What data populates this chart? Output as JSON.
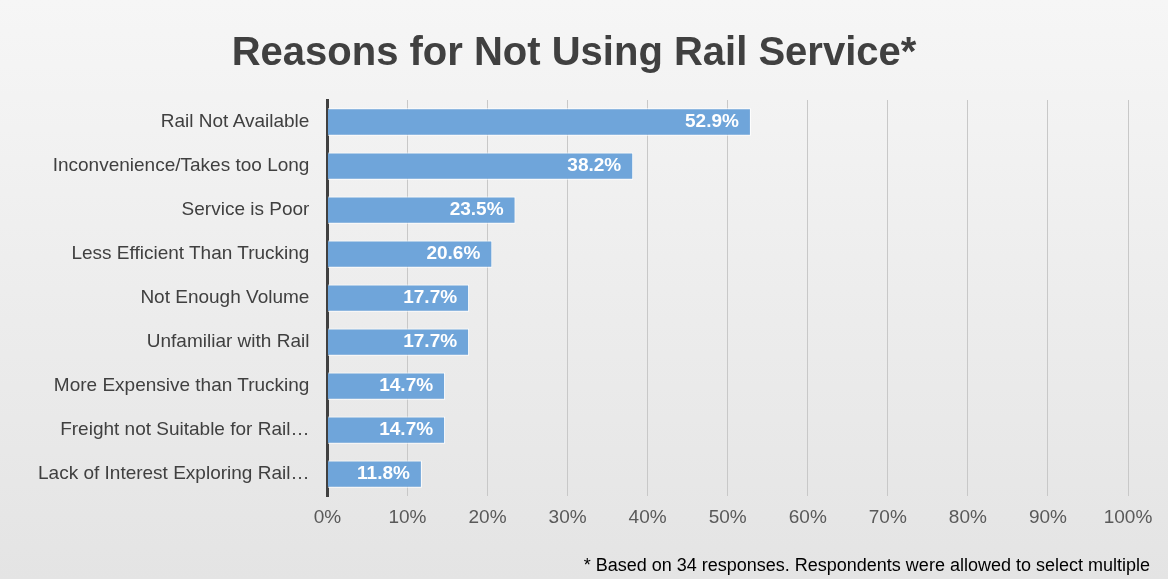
{
  "chart_data": {
    "type": "bar",
    "orientation": "horizontal",
    "title": "Reasons for Not Using Rail Service*",
    "categories": [
      "Rail Not Available",
      "Inconvenience/Takes too Long",
      "Service is Poor",
      "Less Efficient Than Trucking",
      "Not Enough Volume",
      "Unfamiliar with Rail",
      "More Expensive than Trucking",
      "Freight not Suitable for Rail…",
      "Lack of Interest Exploring Rail…"
    ],
    "values": [
      52.9,
      38.2,
      23.5,
      20.6,
      17.7,
      17.7,
      14.7,
      14.7,
      11.8
    ],
    "color": "#6fa5da",
    "xlim": [
      0,
      100
    ],
    "xticks": [
      {
        "value": 0,
        "label": "0%"
      },
      {
        "value": 10,
        "label": "10%"
      },
      {
        "value": 20,
        "label": "20%"
      },
      {
        "value": 30,
        "label": "30%"
      },
      {
        "value": 40,
        "label": "40%"
      },
      {
        "value": 50,
        "label": "50%"
      },
      {
        "value": 60,
        "label": "60%"
      },
      {
        "value": 70,
        "label": "70%"
      },
      {
        "value": 80,
        "label": "80%"
      },
      {
        "value": 90,
        "label": "90%"
      },
      {
        "value": 100,
        "label": "100%"
      }
    ],
    "value_labels": [
      "52.9%",
      "38.2%",
      "23.5%",
      "20.6%",
      "17.7%",
      "17.7%",
      "14.7%",
      "14.7%",
      "11.8%"
    ],
    "grid": "x",
    "legend": false,
    "annotations": [
      "* Based on 34 responses. Respondents were allowed to select multiple"
    ]
  }
}
